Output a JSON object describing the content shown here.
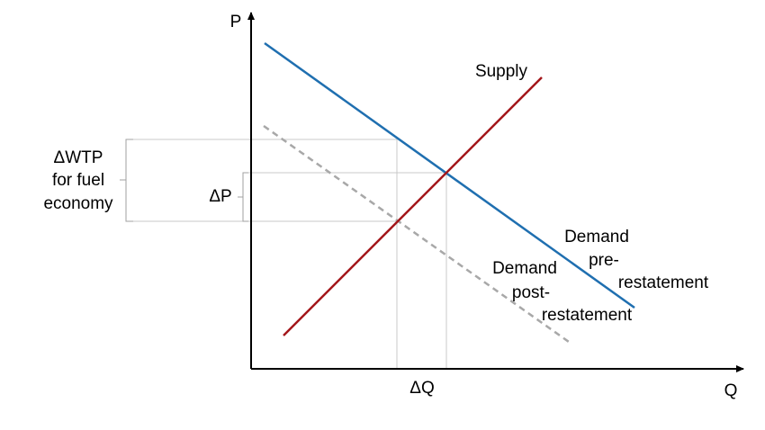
{
  "axes": {
    "y_label": "P",
    "x_label": "Q"
  },
  "curves": {
    "supply": "Supply",
    "demand_pre": [
      "Demand",
      "pre-",
      "restatement"
    ],
    "demand_post": [
      "Demand",
      "post-",
      "restatement"
    ]
  },
  "annotations": {
    "delta_wtp": [
      "ΔWTP",
      "for fuel",
      "economy"
    ],
    "delta_p": "ΔP",
    "delta_q": "ΔQ"
  }
}
